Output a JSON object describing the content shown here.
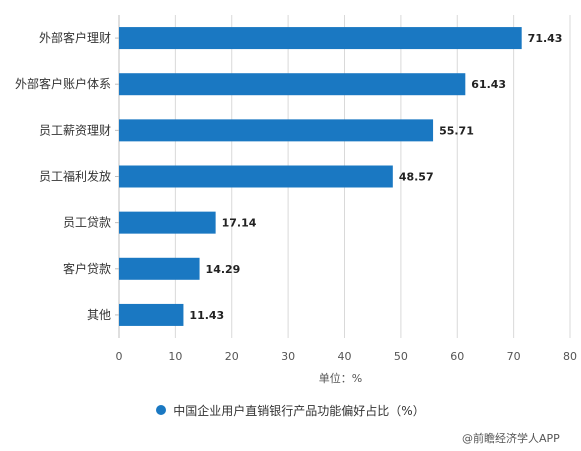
{
  "chart_data": {
    "type": "bar",
    "orientation": "horizontal",
    "categories": [
      "外部客户理财",
      "外部客户账户体系",
      "员工薪资理财",
      "员工福利发放",
      "员工贷款",
      "客户贷款",
      "其他"
    ],
    "series": [
      {
        "name": "中国企业用户直销银行产品功能偏好占比（%）",
        "values": [
          71.43,
          61.43,
          55.71,
          48.57,
          17.14,
          14.29,
          11.43
        ],
        "labels": [
          "71.43",
          "61.43",
          "55.71",
          "48.57",
          "17.14",
          "14.29",
          "11.43"
        ]
      }
    ],
    "xlim": [
      0,
      80
    ],
    "xticks": [
      0,
      10,
      20,
      30,
      40,
      50,
      60,
      70,
      80
    ],
    "xlabel": "单位：%",
    "grid": "vertical",
    "legend_position": "bottom",
    "bar_color": "#1a78c2"
  },
  "watermark": "@前瞻经济学人APP"
}
